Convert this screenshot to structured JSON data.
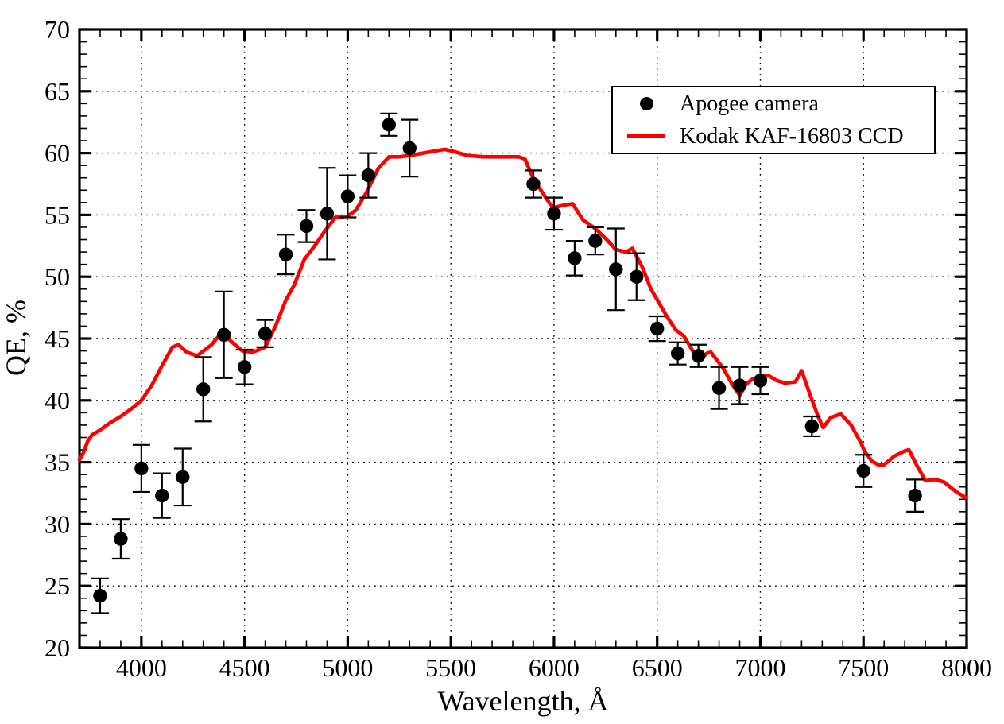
{
  "chart_data": {
    "type": "scatter",
    "title": "",
    "xlabel": "Wavelength, Å",
    "ylabel": "QE, %",
    "xlim": [
      3700,
      8000
    ],
    "ylim": [
      20,
      70
    ],
    "x_major_ticks": [
      4000,
      4500,
      5000,
      5500,
      6000,
      6500,
      7000,
      7500,
      8000
    ],
    "x_minor_step": 100,
    "y_major_ticks": [
      20,
      25,
      30,
      35,
      40,
      45,
      50,
      55,
      60,
      65,
      70
    ],
    "y_minor_step": 1,
    "grid": "dotted-at-major-ticks",
    "legend": {
      "position": "top-right",
      "entries": [
        {
          "label": "Apogee camera",
          "marker": "dot",
          "color": "#000000"
        },
        {
          "label": "Kodak KAF-16803 CCD",
          "marker": "line",
          "color": "#ff0000"
        }
      ]
    },
    "series": [
      {
        "name": "Apogee camera",
        "type": "scatter-with-errorbars",
        "color": "#000000",
        "points_format": [
          "wavelength_A",
          "qe_percent",
          "error_percent"
        ],
        "points": [
          [
            3800,
            24.2,
            1.4
          ],
          [
            3900,
            28.8,
            1.6
          ],
          [
            4000,
            34.5,
            1.9
          ],
          [
            4100,
            32.3,
            1.8
          ],
          [
            4200,
            33.8,
            2.3
          ],
          [
            4300,
            40.9,
            2.6
          ],
          [
            4400,
            45.3,
            3.5
          ],
          [
            4500,
            42.7,
            1.4
          ],
          [
            4600,
            45.4,
            1.1
          ],
          [
            4700,
            51.8,
            1.6
          ],
          [
            4800,
            54.1,
            1.3
          ],
          [
            4900,
            55.1,
            3.7
          ],
          [
            5000,
            56.5,
            1.7
          ],
          [
            5100,
            58.2,
            1.8
          ],
          [
            5200,
            62.3,
            0.9
          ],
          [
            5300,
            60.4,
            2.3
          ],
          [
            5900,
            57.5,
            1.1
          ],
          [
            6000,
            55.1,
            1.3
          ],
          [
            6100,
            51.5,
            1.4
          ],
          [
            6200,
            52.9,
            1.1
          ],
          [
            6300,
            50.6,
            3.3
          ],
          [
            6400,
            50.0,
            1.9
          ],
          [
            6500,
            45.8,
            1.0
          ],
          [
            6600,
            43.8,
            0.9
          ],
          [
            6700,
            43.6,
            0.9
          ],
          [
            6800,
            41.0,
            1.7
          ],
          [
            6900,
            41.2,
            1.5
          ],
          [
            7000,
            41.6,
            1.1
          ],
          [
            7250,
            37.9,
            0.8
          ],
          [
            7500,
            34.3,
            1.3
          ],
          [
            7750,
            32.3,
            1.3
          ]
        ]
      },
      {
        "name": "Kodak KAF-16803 CCD",
        "type": "line",
        "color": "#ff0000",
        "points_format": [
          "wavelength_A",
          "qe_percent"
        ],
        "points": [
          [
            3700,
            35.2
          ],
          [
            3720,
            35.8
          ],
          [
            3740,
            36.7
          ],
          [
            3760,
            37.2
          ],
          [
            3800,
            37.6
          ],
          [
            3850,
            38.2
          ],
          [
            3900,
            38.7
          ],
          [
            3950,
            39.3
          ],
          [
            4000,
            40.0
          ],
          [
            4050,
            41.2
          ],
          [
            4100,
            42.8
          ],
          [
            4150,
            44.3
          ],
          [
            4180,
            44.5
          ],
          [
            4220,
            43.9
          ],
          [
            4270,
            43.6
          ],
          [
            4340,
            44.5
          ],
          [
            4390,
            45.5
          ],
          [
            4440,
            44.7
          ],
          [
            4490,
            44.0
          ],
          [
            4540,
            43.9
          ],
          [
            4600,
            44.3
          ],
          [
            4650,
            46.0
          ],
          [
            4700,
            48.1
          ],
          [
            4740,
            49.3
          ],
          [
            4790,
            51.4
          ],
          [
            4840,
            52.5
          ],
          [
            4890,
            53.7
          ],
          [
            4940,
            54.8
          ],
          [
            5000,
            54.9
          ],
          [
            5040,
            55.4
          ],
          [
            5090,
            56.8
          ],
          [
            5150,
            58.8
          ],
          [
            5200,
            59.7
          ],
          [
            5250,
            59.7
          ],
          [
            5300,
            59.8
          ],
          [
            5400,
            60.1
          ],
          [
            5470,
            60.3
          ],
          [
            5520,
            60.1
          ],
          [
            5580,
            59.8
          ],
          [
            5660,
            59.7
          ],
          [
            5830,
            59.7
          ],
          [
            5860,
            59.5
          ],
          [
            5900,
            57.9
          ],
          [
            5940,
            56.9
          ],
          [
            5980,
            55.9
          ],
          [
            6000,
            55.6
          ],
          [
            6050,
            55.8
          ],
          [
            6090,
            55.9
          ],
          [
            6140,
            54.6
          ],
          [
            6200,
            53.9
          ],
          [
            6250,
            53.1
          ],
          [
            6300,
            52.2
          ],
          [
            6350,
            52.0
          ],
          [
            6380,
            52.3
          ],
          [
            6430,
            50.7
          ],
          [
            6470,
            49.0
          ],
          [
            6550,
            46.7
          ],
          [
            6590,
            45.7
          ],
          [
            6630,
            45.2
          ],
          [
            6690,
            43.5
          ],
          [
            6710,
            43.3
          ],
          [
            6740,
            43.8
          ],
          [
            6760,
            43.9
          ],
          [
            6820,
            42.6
          ],
          [
            6860,
            41.4
          ],
          [
            6900,
            40.4
          ],
          [
            6930,
            41.3
          ],
          [
            6960,
            41.7
          ],
          [
            7000,
            41.9
          ],
          [
            7040,
            42.0
          ],
          [
            7080,
            41.6
          ],
          [
            7120,
            41.4
          ],
          [
            7170,
            41.5
          ],
          [
            7200,
            42.4
          ],
          [
            7240,
            40.5
          ],
          [
            7280,
            38.7
          ],
          [
            7305,
            37.8
          ],
          [
            7340,
            38.6
          ],
          [
            7390,
            38.9
          ],
          [
            7440,
            38.0
          ],
          [
            7490,
            36.5
          ],
          [
            7505,
            35.9
          ],
          [
            7540,
            35.1
          ],
          [
            7570,
            34.8
          ],
          [
            7600,
            34.8
          ],
          [
            7650,
            35.5
          ],
          [
            7700,
            35.9
          ],
          [
            7720,
            36.0
          ],
          [
            7760,
            34.7
          ],
          [
            7800,
            33.5
          ],
          [
            7850,
            33.6
          ],
          [
            7890,
            33.4
          ],
          [
            7950,
            32.6
          ],
          [
            8000,
            32.1
          ]
        ]
      }
    ]
  }
}
